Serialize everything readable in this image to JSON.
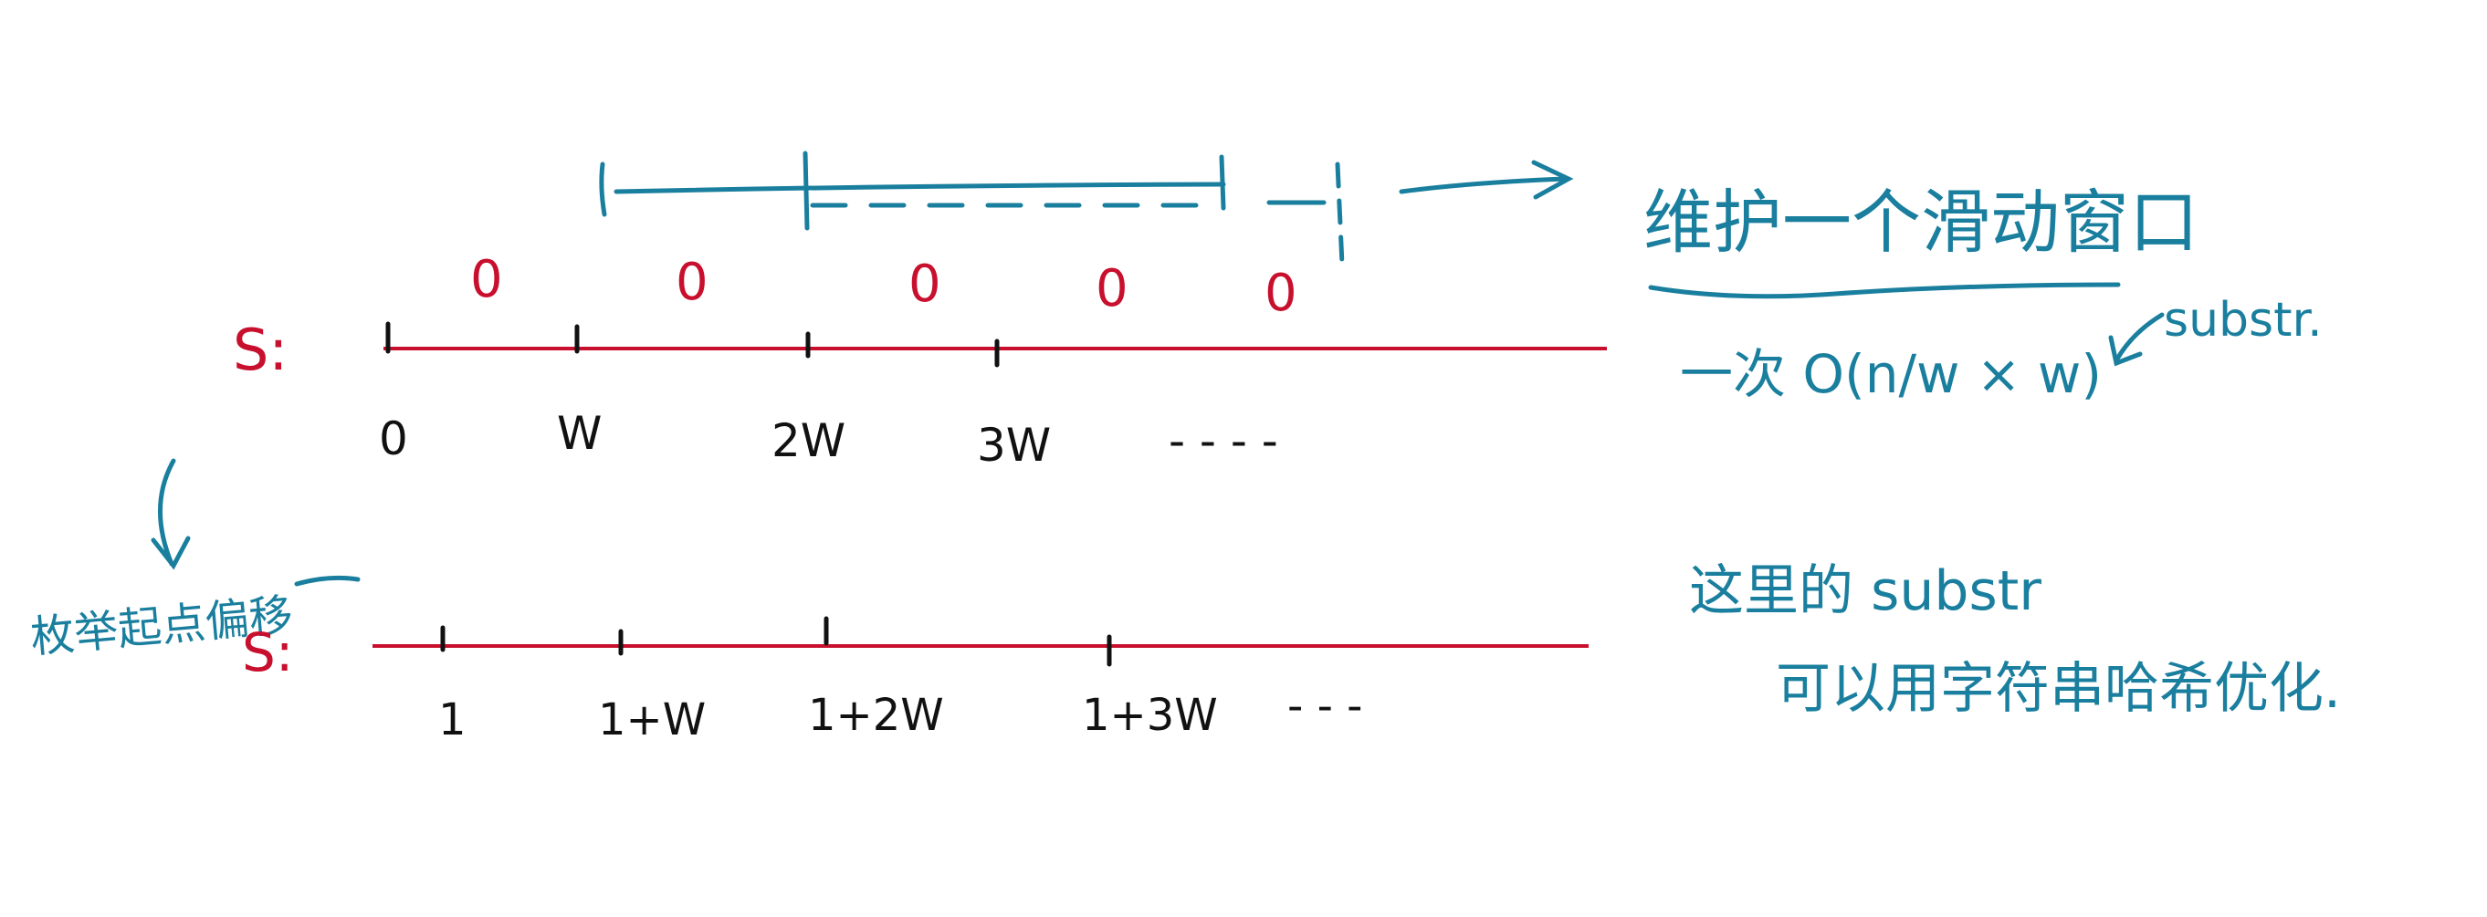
{
  "colors": {
    "red": "#c8102e",
    "teal": "#1a7f9e",
    "black": "#111111"
  },
  "row1": {
    "label": "S:",
    "ticks": [
      "0",
      "W",
      "2W",
      "3W",
      "- - - -"
    ],
    "zeros": [
      "0",
      "0",
      "0",
      "0",
      "0"
    ]
  },
  "row2": {
    "label": "S:",
    "ticks": [
      "1",
      "1+W",
      "1+2W",
      "1+3W",
      "- - -"
    ]
  },
  "annotations": {
    "window": "维护一个滑动窗口",
    "complexity": "一次 O(n/w × w)",
    "substr": "substr.",
    "note_line1": "这里的 substr",
    "note_line2": "可以用字符串哈希优化.",
    "left_note": "枚举起点偏移"
  }
}
